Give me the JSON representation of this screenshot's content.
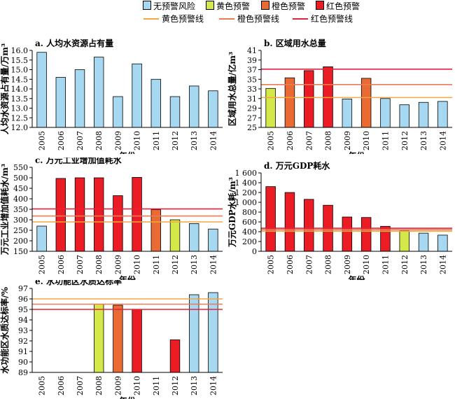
{
  "legend": {
    "boxes": [
      {
        "label": "无预警风险",
        "color": "#a6d8f2"
      },
      {
        "label": "黄色预警",
        "color": "#d4e84a"
      },
      {
        "label": "橙色预警",
        "color": "#ea6a33"
      },
      {
        "label": "红色预警",
        "color": "#ec1c24"
      }
    ],
    "lines": [
      {
        "label": "黄色预警线",
        "color": "#f2a744"
      },
      {
        "label": "橙色预警线",
        "color": "#ec7a52"
      },
      {
        "label": "红色预警线",
        "color": "#e8213a"
      }
    ]
  },
  "colors": {
    "none": "#a6d8f2",
    "yellow": "#d4e84a",
    "orange": "#ea6a33",
    "red": "#ec1c24"
  },
  "chart_data": [
    {
      "type": "bar",
      "title": "a. 人均水资源占有量",
      "xlabel": "年份",
      "ylabel": "人均水资源占有量/万m³",
      "categories": [
        "2005",
        "2006",
        "2007",
        "2008",
        "2009",
        "2010",
        "2011",
        "2012",
        "2013",
        "2014"
      ],
      "values": [
        15.9,
        14.6,
        15.0,
        15.65,
        13.6,
        15.3,
        14.5,
        13.6,
        14.15,
        13.9
      ],
      "levels": [
        "none",
        "none",
        "none",
        "none",
        "none",
        "none",
        "none",
        "none",
        "none",
        "none"
      ],
      "ylim": [
        12.0,
        16.0
      ],
      "yticks": [
        "12.0",
        "12.5",
        "13.0",
        "13.5",
        "14.0",
        "14.5",
        "15.0",
        "15.5",
        "16.0"
      ],
      "warning_lines": []
    },
    {
      "type": "bar",
      "title": "b. 区域用水总量",
      "xlabel": "年份",
      "ylabel": "区域用水总量/亿m³",
      "categories": [
        "2005",
        "2006",
        "2007",
        "2008",
        "2009",
        "2010",
        "2011",
        "2012",
        "2013",
        "2014"
      ],
      "values": [
        33.1,
        35.3,
        36.8,
        37.6,
        30.9,
        35.2,
        31.0,
        29.7,
        30.2,
        30.4
      ],
      "levels": [
        "yellow",
        "orange",
        "red",
        "red",
        "none",
        "orange",
        "none",
        "none",
        "none",
        "none"
      ],
      "ylim": [
        25,
        41
      ],
      "yticks": [
        "25",
        "27",
        "29",
        "31",
        "33",
        "35",
        "37",
        "39",
        "41"
      ],
      "warning_lines": [
        {
          "value": 31.2,
          "level": "yellow"
        },
        {
          "value": 33.9,
          "level": "orange"
        },
        {
          "value": 37.1,
          "level": "red"
        }
      ]
    },
    {
      "type": "bar",
      "title": "c. 万元工业增加值耗水",
      "xlabel": "年份",
      "ylabel": "万元工业增加值耗水/m³",
      "categories": [
        "2005",
        "2006",
        "2007",
        "2008",
        "2009",
        "2010",
        "2011",
        "2012",
        "2013",
        "2014"
      ],
      "values": [
        270,
        497,
        500,
        500,
        415,
        502,
        348,
        300,
        282,
        256
      ],
      "levels": [
        "none",
        "red",
        "red",
        "red",
        "red",
        "red",
        "orange",
        "yellow",
        "none",
        "none"
      ],
      "ylim": [
        150,
        550
      ],
      "yticks": [
        "150",
        "200",
        "250",
        "300",
        "350",
        "400",
        "450",
        "500",
        "550"
      ],
      "warning_lines": [
        {
          "value": 290,
          "level": "yellow"
        },
        {
          "value": 318,
          "level": "orange"
        },
        {
          "value": 352,
          "level": "red"
        }
      ]
    },
    {
      "type": "bar",
      "title": "d. 万元GDP耗水",
      "xlabel": "年份",
      "ylabel": "万元GDP水耗/m³",
      "categories": [
        "2005",
        "2006",
        "2007",
        "2008",
        "2009",
        "2010",
        "2011",
        "2012",
        "2013",
        "2014"
      ],
      "values": [
        1320,
        1200,
        1060,
        940,
        700,
        690,
        510,
        420,
        370,
        330
      ],
      "levels": [
        "red",
        "red",
        "red",
        "red",
        "red",
        "red",
        "red",
        "yellow",
        "none",
        "none"
      ],
      "ylim": [
        0,
        1600
      ],
      "yticks": [
        "0",
        "200",
        "400",
        "600",
        "800",
        "1 000",
        "1 200",
        "1 400",
        "1 600"
      ],
      "warning_lines": [
        {
          "value": 410,
          "level": "yellow"
        },
        {
          "value": 440,
          "level": "orange"
        },
        {
          "value": 470,
          "level": "red"
        }
      ]
    },
    {
      "type": "bar",
      "title": "e. 水功能区水质达标率",
      "xlabel": "年份",
      "ylabel": "水功能区水质达标率/%",
      "categories": [
        "2005",
        "2006",
        "2007",
        "2008",
        "2009",
        "2010",
        "2011",
        "2012",
        "2013",
        "2014"
      ],
      "values": [
        null,
        null,
        null,
        95.5,
        95.4,
        95.0,
        null,
        92.1,
        96.4,
        96.6
      ],
      "levels": [
        "none",
        "none",
        "none",
        "yellow",
        "orange",
        "red",
        "none",
        "red",
        "none",
        "none"
      ],
      "ylim": [
        89,
        97
      ],
      "yticks": [
        "89",
        "90",
        "91",
        "92",
        "93",
        "94",
        "95",
        "96",
        "97"
      ],
      "warning_lines": [
        {
          "value": 96.0,
          "level": "yellow"
        },
        {
          "value": 95.5,
          "level": "orange"
        },
        {
          "value": 95.0,
          "level": "red"
        }
      ]
    }
  ]
}
